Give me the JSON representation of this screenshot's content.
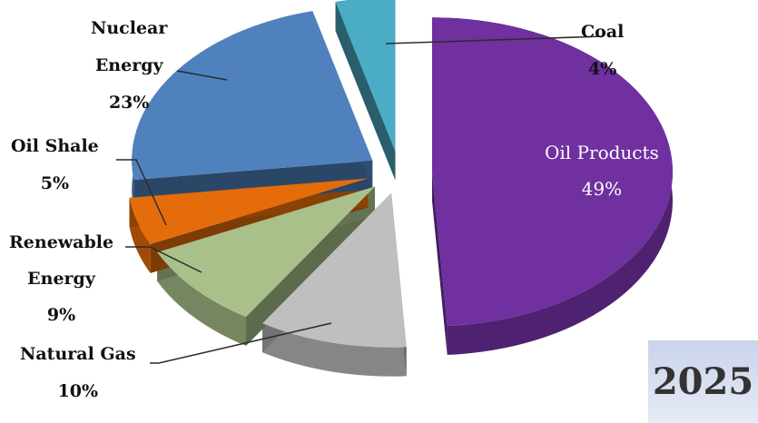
{
  "chart_data": {
    "type": "pie",
    "style": "3d-exploded",
    "slices": [
      {
        "label": "Oil Products",
        "value": 49,
        "pct_text": "49%",
        "color": "#7030a0"
      },
      {
        "label": "Natural Gas",
        "value": 10,
        "pct_text": "10%",
        "color": "#bfbfbf"
      },
      {
        "label": "Renewable Energy",
        "value": 9,
        "pct_text": "9%",
        "color": "#a9c08a"
      },
      {
        "label": "Oil Shale",
        "value": 5,
        "pct_text": "5%",
        "color": "#e46c0a"
      },
      {
        "label": "Nuclear Energy",
        "value": 23,
        "pct_text": "23%",
        "color": "#4f81bd"
      },
      {
        "label": "Coal",
        "value": 4,
        "pct_text": "4%",
        "color": "#4bacc6"
      }
    ],
    "year": "2025"
  },
  "labels": {
    "coal": {
      "line1": "Coal",
      "pct": "4%"
    },
    "oil_products": {
      "line1": "Oil Products",
      "pct": "49%"
    },
    "nuclear": {
      "line1": "Nuclear",
      "line2": "Energy",
      "pct": "23%"
    },
    "oil_shale": {
      "line1": "Oil Shale",
      "pct": "5%"
    },
    "renewable": {
      "line1": "Renewable",
      "line2": "Energy",
      "pct": "9%"
    },
    "natural_gas": {
      "line1": "Natural Gas",
      "pct": "10%"
    }
  }
}
